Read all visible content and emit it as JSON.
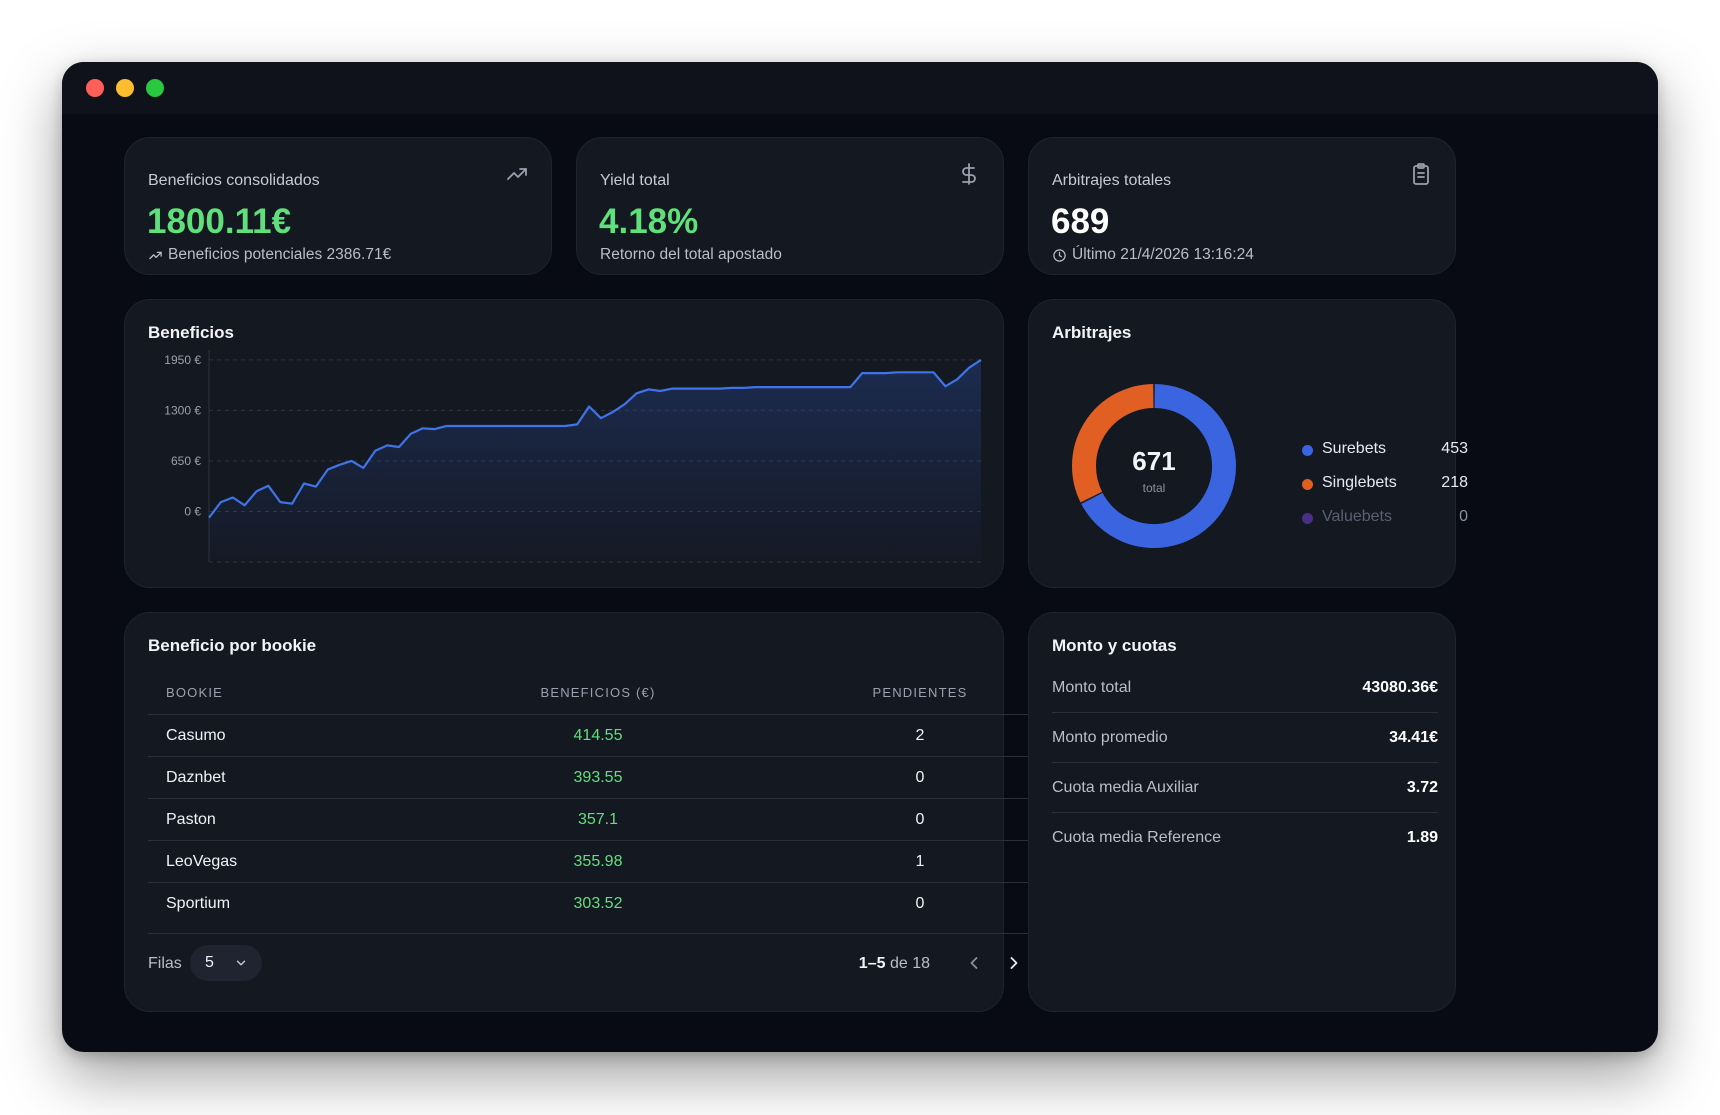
{
  "window": {
    "controls": [
      "close",
      "minimize",
      "maximize"
    ]
  },
  "stats": [
    {
      "label": "Beneficios consolidados",
      "value": "1800.11€",
      "sub": "Beneficios potenciales 2386.71€",
      "icon": "trending-up-icon"
    },
    {
      "label": "Yield total",
      "value": "4.18%",
      "sub": "Retorno del total apostado",
      "icon": "dollar-icon"
    },
    {
      "label": "Arbitrajes totales",
      "value": "689",
      "sub": "Último 21/4/2026 13:16:24",
      "icon": "clipboard-icon"
    }
  ],
  "beneficios_chart": {
    "title": "Beneficios",
    "chart_data": {
      "type": "area",
      "ylabel": "",
      "y_ticks": [
        "1950 €",
        "1300 €",
        "650 €",
        "0 €"
      ],
      "y_tick_values": [
        1950,
        1300,
        650,
        0
      ],
      "ylim": [
        -650,
        2000
      ],
      "x": [
        0,
        1,
        2,
        3,
        4,
        5,
        6,
        7,
        8,
        9,
        10,
        11,
        12,
        13,
        14,
        15,
        16,
        17,
        18,
        19,
        20,
        21,
        22,
        23,
        24,
        25,
        26,
        27,
        28,
        29,
        30,
        31,
        32,
        33,
        34,
        35,
        36,
        37,
        38,
        39,
        40,
        41,
        42,
        43,
        44,
        45,
        46,
        47,
        48,
        49,
        50,
        51,
        52,
        53,
        54,
        55,
        56,
        57,
        58,
        59,
        60,
        61,
        62,
        63,
        64,
        65
      ],
      "values": [
        -80,
        120,
        180,
        80,
        260,
        330,
        120,
        100,
        360,
        320,
        540,
        600,
        650,
        560,
        780,
        850,
        830,
        1000,
        1070,
        1060,
        1100,
        1100,
        1100,
        1100,
        1100,
        1100,
        1100,
        1100,
        1100,
        1100,
        1100,
        1120,
        1350,
        1200,
        1280,
        1380,
        1520,
        1570,
        1550,
        1580,
        1580,
        1580,
        1580,
        1580,
        1590,
        1590,
        1600,
        1600,
        1600,
        1600,
        1600,
        1600,
        1600,
        1600,
        1600,
        1780,
        1780,
        1780,
        1790,
        1790,
        1790,
        1790,
        1610,
        1700,
        1850,
        1950
      ],
      "line_color": "#3f74e8"
    }
  },
  "arbitrajes": {
    "title": "Arbitrajes",
    "center_value": "671",
    "center_label": "total",
    "chart_data": {
      "type": "pie",
      "categories": [
        "Surebets",
        "Singlebets",
        "Valuebets"
      ],
      "values": [
        453,
        218,
        0
      ],
      "colors": [
        "#3b64e0",
        "#e25f24",
        "#4a2f86"
      ]
    },
    "legend": [
      {
        "name": "Surebets",
        "value": "453",
        "color": "#3b64e0"
      },
      {
        "name": "Singlebets",
        "value": "218",
        "color": "#e25f24"
      },
      {
        "name": "Valuebets",
        "value": "0",
        "color": "#4a2f86"
      }
    ]
  },
  "bookies": {
    "title": "Beneficio por bookie",
    "columns": [
      "BOOKIE",
      "BENEFICIOS (€)",
      "PENDIENTES"
    ],
    "rows": [
      {
        "bookie": "Casumo",
        "beneficio": "414.55",
        "pendientes": "2"
      },
      {
        "bookie": "Daznbet",
        "beneficio": "393.55",
        "pendientes": "0"
      },
      {
        "bookie": "Paston",
        "beneficio": "357.1",
        "pendientes": "0"
      },
      {
        "bookie": "LeoVegas",
        "beneficio": "355.98",
        "pendientes": "1"
      },
      {
        "bookie": "Sportium",
        "beneficio": "303.52",
        "pendientes": "0"
      }
    ],
    "footer": {
      "rows_label": "Filas",
      "rows_value": "5",
      "range": "1–5",
      "of": "de 18"
    }
  },
  "monto": {
    "title": "Monto y cuotas",
    "rows": [
      {
        "label": "Monto total",
        "value": "43080.36€"
      },
      {
        "label": "Monto promedio",
        "value": "34.41€"
      },
      {
        "label": "Cuota media Auxiliar",
        "value": "3.72"
      },
      {
        "label": "Cuota media Reference",
        "value": "1.89"
      }
    ]
  }
}
